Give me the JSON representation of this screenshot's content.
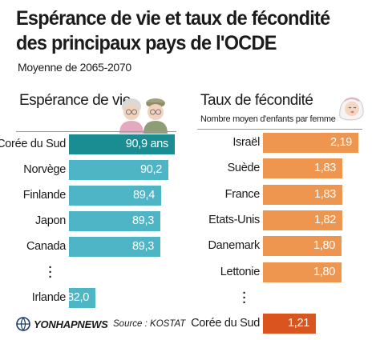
{
  "header": {
    "title": "Espérance de vie et taux de fécondité des principaux pays de l'OCDE",
    "subtitle": "Moyenne de 2065-2070"
  },
  "colors": {
    "life_bar": "#4db5c5",
    "life_bar_highlight": "#1a8d92",
    "fert_bar": "#ee9550",
    "fert_bar_highlight": "#d9541f",
    "rule": "#9a9a9a"
  },
  "icons": {
    "life": "elderly-couple-icon",
    "fertility": "baby-icon",
    "logo": "yonhap-globe-icon"
  },
  "chart_data": [
    {
      "type": "bar",
      "orientation": "horizontal",
      "title": "Espérance de vie",
      "categories": [
        "Corée du Sud",
        "Norvège",
        "Finlande",
        "Japon",
        "Canada",
        "Irlande"
      ],
      "values": [
        90.9,
        90.2,
        89.4,
        89.3,
        89.3,
        82.0
      ],
      "value_labels": [
        "90,9 ans",
        "90,2",
        "89,4",
        "89,3",
        "89,3",
        "82,0"
      ],
      "highlight_index": 0,
      "ellipsis_before_last": true
    },
    {
      "type": "bar",
      "orientation": "horizontal",
      "title": "Taux de fécondité",
      "subtitle": "Nombre moyen d'enfants par femme",
      "categories": [
        "Israël",
        "Suède",
        "France",
        "Etats-Unis",
        "Danemark",
        "Lettonie",
        "Corée du Sud"
      ],
      "values": [
        2.19,
        1.83,
        1.83,
        1.82,
        1.8,
        1.8,
        1.21
      ],
      "value_labels": [
        "2,19",
        "1,83",
        "1,83",
        "1,82",
        "1,80",
        "1,80",
        "1,21"
      ],
      "highlight_index": 6,
      "ellipsis_before_last": true
    }
  ],
  "footer": {
    "logo_text": "YONHAPNEWS",
    "source": "Source : KOSTAT"
  }
}
